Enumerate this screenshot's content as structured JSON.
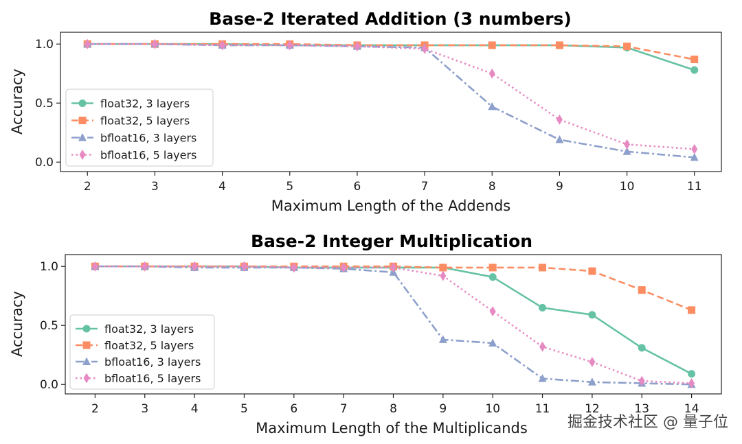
{
  "watermark": "掘金技术社区 @ 量子位",
  "chart_data": [
    {
      "type": "line",
      "title": "Base-2 Iterated Addition (3 numbers)",
      "xlabel": "Maximum Length of the Addends",
      "ylabel": "Accuracy",
      "x": [
        2,
        3,
        4,
        5,
        6,
        7,
        8,
        9,
        10,
        11
      ],
      "xlim": [
        1.6,
        11.4
      ],
      "ylim": [
        -0.08,
        1.1
      ],
      "yticks": [
        0.0,
        0.5,
        1.0
      ],
      "ytick_labels": [
        "0.0",
        "0.5",
        "1.0"
      ],
      "grid": false,
      "legend": "center-left",
      "series": [
        {
          "name": "float32, 3 layers",
          "color": "#66c2a5",
          "marker": "circle",
          "style": "solid",
          "values": [
            1.0,
            1.0,
            1.0,
            0.99,
            0.99,
            0.99,
            0.99,
            0.99,
            0.97,
            0.78
          ]
        },
        {
          "name": "float32, 5 layers",
          "color": "#fc8d62",
          "marker": "square",
          "style": "dashed",
          "values": [
            1.0,
            1.0,
            1.0,
            1.0,
            0.99,
            0.99,
            0.99,
            0.99,
            0.98,
            0.87
          ]
        },
        {
          "name": "bfloat16, 3 layers",
          "color": "#8da0cb",
          "marker": "triangle",
          "style": "dashdot",
          "values": [
            1.0,
            1.0,
            0.99,
            0.99,
            0.98,
            0.97,
            0.47,
            0.19,
            0.09,
            0.04
          ]
        },
        {
          "name": "bfloat16, 5 layers",
          "color": "#e78ac3",
          "marker": "diamond",
          "style": "dotted",
          "values": [
            1.0,
            1.0,
            0.99,
            0.99,
            0.98,
            0.96,
            0.75,
            0.36,
            0.15,
            0.11
          ]
        }
      ]
    },
    {
      "type": "line",
      "title": "Base-2 Integer Multiplication",
      "xlabel": "Maximum Length of the Multiplicands",
      "ylabel": "Accuracy",
      "x": [
        2,
        3,
        4,
        5,
        6,
        7,
        8,
        9,
        10,
        11,
        12,
        13,
        14
      ],
      "xlim": [
        1.4,
        14.6
      ],
      "ylim": [
        -0.08,
        1.1
      ],
      "yticks": [
        0.0,
        0.5,
        1.0
      ],
      "ytick_labels": [
        "0.0",
        "0.5",
        "1.0"
      ],
      "grid": false,
      "legend": "lower-left",
      "series": [
        {
          "name": "float32, 3 layers",
          "color": "#66c2a5",
          "marker": "circle",
          "style": "solid",
          "values": [
            1.0,
            1.0,
            1.0,
            1.0,
            0.99,
            0.99,
            0.99,
            0.99,
            0.91,
            0.65,
            0.59,
            0.31,
            0.09
          ]
        },
        {
          "name": "float32, 5 layers",
          "color": "#fc8d62",
          "marker": "square",
          "style": "dashed",
          "values": [
            1.0,
            1.0,
            1.0,
            1.0,
            1.0,
            1.0,
            1.0,
            0.99,
            0.99,
            0.99,
            0.96,
            0.8,
            0.63
          ]
        },
        {
          "name": "bfloat16, 3 layers",
          "color": "#8da0cb",
          "marker": "triangle",
          "style": "dashdot",
          "values": [
            1.0,
            1.0,
            0.99,
            0.99,
            0.99,
            0.98,
            0.95,
            0.38,
            0.35,
            0.05,
            0.02,
            0.01,
            0.0
          ]
        },
        {
          "name": "bfloat16, 5 layers",
          "color": "#e78ac3",
          "marker": "diamond",
          "style": "dotted",
          "values": [
            1.0,
            1.0,
            1.0,
            1.0,
            0.99,
            0.99,
            0.99,
            0.92,
            0.62,
            0.32,
            0.19,
            0.03,
            0.01
          ]
        }
      ]
    }
  ]
}
